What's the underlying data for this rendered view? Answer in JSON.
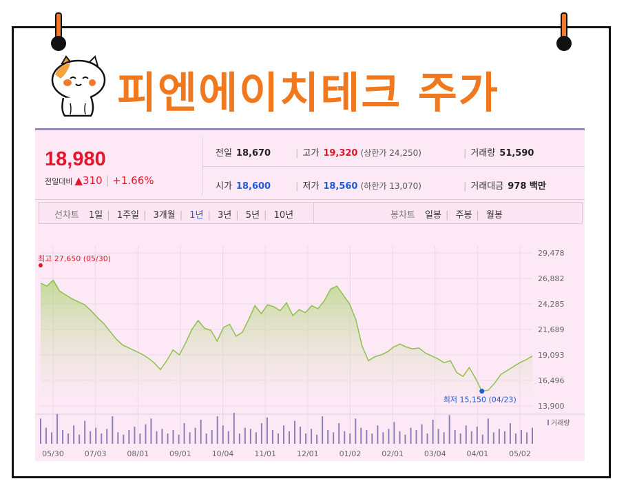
{
  "title": "피엔에이치테크 주가",
  "quote": {
    "price": "18,980",
    "change_label": "전일대비",
    "change_arrow": "▲",
    "change_value": "310",
    "change_pct": "+1.66%"
  },
  "stats": {
    "prev_label": "전일",
    "prev_value": "18,670",
    "high_label": "고가",
    "high_value": "19,320",
    "upper_limit": "(상한가 24,250)",
    "volume_label": "거래량",
    "volume_value": "51,590",
    "open_label": "시가",
    "open_value": "18,600",
    "low_label": "저가",
    "low_value": "18,560",
    "lower_limit": "(하한가 13,070)",
    "amount_label": "거래대금",
    "amount_value": "978 백만"
  },
  "line_tabs": {
    "header": "선차트",
    "items": [
      "1일",
      "1주일",
      "3개월",
      "1년",
      "3년",
      "5년",
      "10년"
    ],
    "active": "1년"
  },
  "candle_tabs": {
    "header": "봉차트",
    "items": [
      "일봉",
      "주봉",
      "월봉"
    ]
  },
  "colors": {
    "title": "#f0781f",
    "up": "#e3162a",
    "down": "#1f5bd4",
    "line": "#8cc04a",
    "panel": "#fde9f6"
  },
  "chart_data": {
    "type": "area",
    "x_labels": [
      "05/30",
      "07/03",
      "08/01",
      "09/01",
      "10/04",
      "11/01",
      "12/01",
      "01/02",
      "02/01",
      "03/04",
      "04/01",
      "05/02"
    ],
    "y_ticks": [
      "29,478",
      "26,882",
      "24,285",
      "21,689",
      "19,093",
      "16,496",
      "13,900"
    ],
    "ylim": [
      13900,
      29478
    ],
    "max_annotation": "최고 27,650 (05/30)",
    "min_annotation": "최저 15,150 (04/23)",
    "volume_label": "거래량",
    "series": [
      {
        "values": [
          26400,
          26100,
          26700,
          25600,
          25200,
          24800,
          24500,
          24200,
          23600,
          22900,
          22300,
          21500,
          20700,
          20100,
          19800,
          19500,
          19200,
          18800,
          18300,
          17600,
          18500,
          19600,
          19100,
          20300,
          21700,
          22600,
          21800,
          21600,
          20500,
          21900,
          22200,
          21000,
          21400,
          22700,
          24100,
          23300,
          24200,
          24000,
          23600,
          24400,
          23100,
          23700,
          23400,
          24100,
          23800,
          24600,
          25800,
          26100,
          25200,
          24300,
          22700,
          20000,
          18500,
          18900,
          19100,
          19400,
          19900,
          20200,
          19900,
          19700,
          19800,
          19300,
          19000,
          18700,
          18300,
          18500,
          17300,
          16900,
          17800,
          16700,
          15400,
          15500,
          16200,
          17100,
          17500,
          17900,
          18300,
          18600,
          18980
        ]
      }
    ],
    "volume": [
      22,
      14,
      10,
      26,
      12,
      9,
      16,
      8,
      20,
      11,
      14,
      9,
      13,
      24,
      10,
      8,
      12,
      15,
      9,
      17,
      22,
      11,
      13,
      9,
      12,
      8,
      18,
      10,
      14,
      21,
      9,
      12,
      24,
      16,
      11,
      27,
      9,
      14,
      13,
      10,
      18,
      23,
      12,
      9,
      16,
      11,
      20,
      15,
      9,
      13,
      8,
      24,
      12,
      10,
      18,
      11,
      9,
      22,
      14,
      12,
      9,
      16,
      10,
      13,
      19,
      11,
      8,
      14,
      12,
      17,
      9,
      21,
      13,
      10,
      25,
      12,
      9,
      16,
      11,
      15,
      8,
      22,
      10,
      13,
      11,
      18,
      9,
      12,
      10,
      14
    ]
  }
}
